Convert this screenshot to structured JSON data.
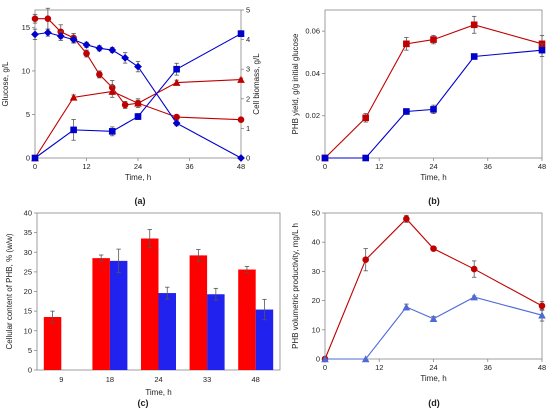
{
  "chart_data": [
    {
      "panel_label": "(a)",
      "type": "line",
      "xlabel": "Time, h",
      "ylabel": "Glucose, g/L",
      "y2label": "Cell biomass, g/L",
      "xlim": [
        0,
        48
      ],
      "ylim": [
        0,
        17
      ],
      "y2lim": [
        0,
        5
      ],
      "xticks": [
        0,
        12,
        24,
        36,
        48
      ],
      "yticks": [
        0,
        5,
        10,
        15
      ],
      "y2ticks": [
        0,
        1,
        2,
        3,
        4,
        5
      ],
      "grid": false,
      "series": [
        {
          "axis": "left",
          "color": "#c00000",
          "marker": "circle",
          "x": [
            0,
            3,
            6,
            9,
            12,
            15,
            18,
            21,
            24,
            33,
            48
          ],
          "values": [
            16.0,
            16.0,
            14.5,
            13.8,
            12.0,
            9.6,
            8.1,
            6.1,
            6.3,
            4.7,
            4.4
          ],
          "err": [
            0.5,
            1.2,
            0.8,
            0.5,
            0.4,
            0.4,
            0.8,
            0.4,
            0.5,
            0.2,
            0.2
          ]
        },
        {
          "axis": "left",
          "color": "#0000cc",
          "marker": "diamond",
          "x": [
            0,
            3,
            6,
            9,
            12,
            15,
            18,
            21,
            24,
            33,
            48
          ],
          "values": [
            14.2,
            14.4,
            14.0,
            13.6,
            13.0,
            12.6,
            12.4,
            11.5,
            10.5,
            4.0,
            0.0
          ],
          "err": [
            0.6,
            0.4,
            0.5,
            0.4,
            0.3,
            0.3,
            0.3,
            0.6,
            0.6,
            0.3,
            0.0
          ]
        },
        {
          "axis": "right",
          "color": "#c00000",
          "marker": "triangle",
          "x": [
            0,
            9,
            18,
            24,
            33,
            48
          ],
          "values": [
            0.0,
            2.05,
            2.25,
            1.85,
            2.55,
            2.65
          ],
          "err": [
            0.0,
            0.08,
            0.2,
            0.1,
            0.08,
            0.05
          ]
        },
        {
          "axis": "right",
          "color": "#0000cc",
          "marker": "square",
          "x": [
            0,
            9,
            18,
            24,
            33,
            48
          ],
          "values": [
            0.0,
            0.95,
            0.9,
            1.4,
            3.0,
            4.2
          ],
          "err": [
            0.0,
            0.35,
            0.15,
            0.1,
            0.2,
            0.1
          ]
        }
      ]
    },
    {
      "panel_label": "(b)",
      "type": "line",
      "xlabel": "Time, h",
      "ylabel": "PHB yield, g/g initial glucose",
      "xlim": [
        0,
        48
      ],
      "ylim": [
        0,
        0.07
      ],
      "xticks": [
        0,
        12,
        24,
        36,
        48
      ],
      "yticks": [
        0,
        0.02,
        0.04,
        0.06
      ],
      "grid": false,
      "series": [
        {
          "color": "#c00000",
          "marker": "square",
          "x": [
            0,
            9,
            18,
            24,
            33,
            48
          ],
          "values": [
            0.0,
            0.019,
            0.054,
            0.056,
            0.063,
            0.054
          ],
          "err": [
            0.0,
            0.002,
            0.003,
            0.002,
            0.004,
            0.004
          ]
        },
        {
          "color": "#0000cc",
          "marker": "square",
          "x": [
            0,
            9,
            18,
            24,
            33,
            48
          ],
          "values": [
            0.0,
            0.0,
            0.022,
            0.023,
            0.048,
            0.051
          ],
          "err": [
            0.0,
            0.0,
            0.001,
            0.002,
            0.001,
            0.003
          ]
        }
      ]
    },
    {
      "panel_label": "(c)",
      "type": "bar",
      "xlabel": "Time, h",
      "ylabel": "Cellular content of PHB, % (w/w)",
      "categories": [
        "9",
        "18",
        "24",
        "33",
        "48"
      ],
      "ylim": [
        0,
        40
      ],
      "yticks": [
        0,
        5,
        10,
        15,
        20,
        25,
        30,
        35,
        40
      ],
      "grid": false,
      "series": [
        {
          "color": "#ff0000",
          "values": [
            13.5,
            28.5,
            33.5,
            29.2,
            25.6
          ],
          "err": [
            1.5,
            0.8,
            2.3,
            1.5,
            0.8
          ]
        },
        {
          "color": "#2222ee",
          "values": [
            null,
            27.8,
            19.6,
            19.3,
            15.4
          ],
          "err": [
            null,
            3.0,
            1.5,
            1.5,
            2.6
          ]
        }
      ]
    },
    {
      "panel_label": "(d)",
      "type": "line",
      "xlabel": "Time, h",
      "ylabel": "PHB volumetric productivity, mg/L h",
      "xlim": [
        0,
        48
      ],
      "ylim": [
        0,
        50
      ],
      "xticks": [
        0,
        12,
        24,
        36,
        48
      ],
      "yticks": [
        0,
        10,
        20,
        30,
        40,
        50
      ],
      "grid": false,
      "series": [
        {
          "color": "#c00000",
          "marker": "circle",
          "x": [
            0,
            9,
            18,
            24,
            33,
            48
          ],
          "values": [
            0.0,
            34.0,
            48.0,
            37.8,
            30.8,
            18.2
          ],
          "err": [
            0.0,
            3.8,
            1.2,
            0.5,
            2.8,
            1.5
          ]
        },
        {
          "color": "#4f6ad7",
          "marker": "triangle",
          "x": [
            0,
            9,
            18,
            24,
            33,
            48
          ],
          "values": [
            0.0,
            0.0,
            17.8,
            13.8,
            21.2,
            15.0
          ],
          "err": [
            0.0,
            0.0,
            1.0,
            0.8,
            0.4,
            2.0
          ]
        }
      ]
    }
  ]
}
